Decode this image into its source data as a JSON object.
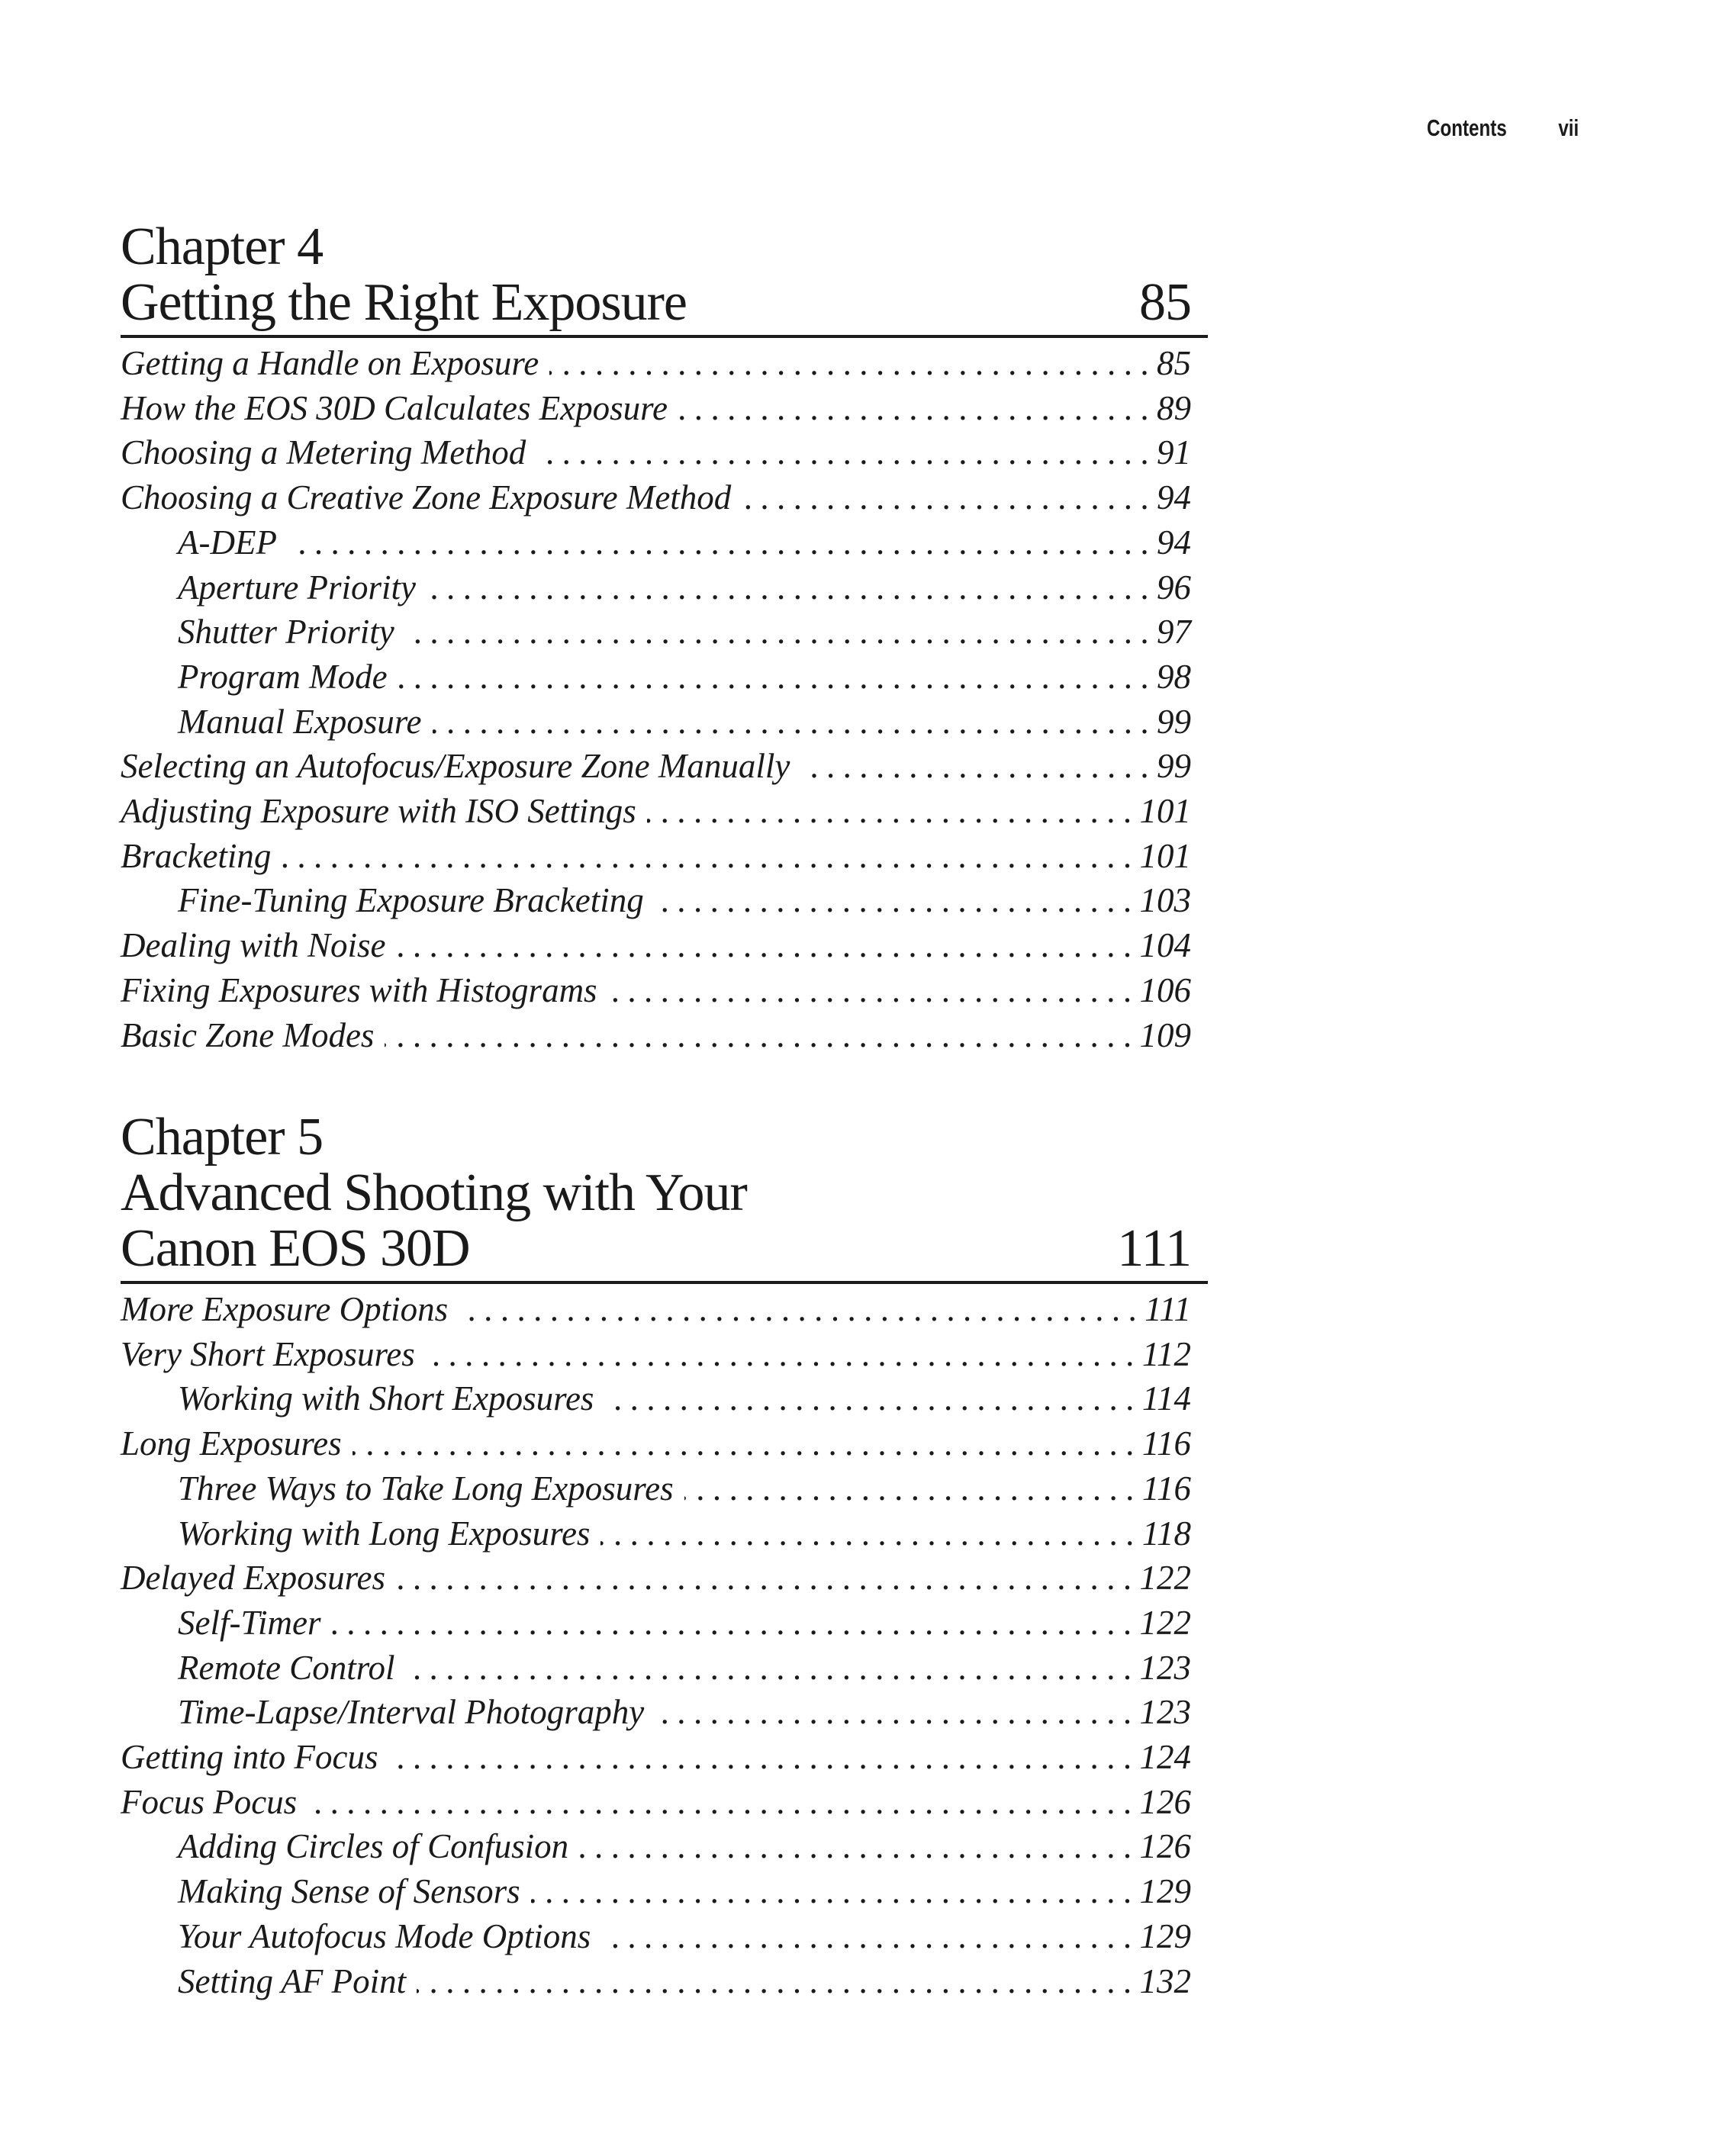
{
  "running_head": {
    "section": "Contents",
    "page": "vii"
  },
  "chapters": [
    {
      "label": "Chapter 4",
      "title_lines": [
        "Getting the Right Exposure"
      ],
      "page": "85",
      "entries": [
        {
          "title": "Getting a Handle on Exposure",
          "page": "85",
          "level": 1
        },
        {
          "title": "How the EOS 30D Calculates Exposure",
          "page": "89",
          "level": 1
        },
        {
          "title": "Choosing a Metering Method",
          "page": "91",
          "level": 1
        },
        {
          "title": "Choosing a Creative Zone Exposure Method",
          "page": "94",
          "level": 1
        },
        {
          "title": "A-DEP",
          "page": "94",
          "level": 2
        },
        {
          "title": "Aperture Priority",
          "page": "96",
          "level": 2
        },
        {
          "title": "Shutter Priority",
          "page": "97",
          "level": 2
        },
        {
          "title": "Program Mode",
          "page": "98",
          "level": 2
        },
        {
          "title": "Manual Exposure",
          "page": "99",
          "level": 2
        },
        {
          "title": "Selecting an Autofocus/Exposure Zone Manually",
          "page": "99",
          "level": 1
        },
        {
          "title": "Adjusting Exposure with ISO Settings",
          "page": "101",
          "level": 1
        },
        {
          "title": "Bracketing",
          "page": "101",
          "level": 1
        },
        {
          "title": "Fine-Tuning Exposure Bracketing",
          "page": "103",
          "level": 2
        },
        {
          "title": "Dealing with Noise",
          "page": "104",
          "level": 1
        },
        {
          "title": "Fixing Exposures with Histograms",
          "page": "106",
          "level": 1
        },
        {
          "title": "Basic Zone Modes",
          "page": "109",
          "level": 1
        }
      ]
    },
    {
      "label": "Chapter 5",
      "title_lines": [
        "Advanced Shooting with Your",
        "Canon EOS 30D"
      ],
      "page": "111",
      "entries": [
        {
          "title": "More Exposure Options",
          "page": "111",
          "level": 1
        },
        {
          "title": "Very Short Exposures",
          "page": "112",
          "level": 1
        },
        {
          "title": "Working with Short Exposures",
          "page": "114",
          "level": 2
        },
        {
          "title": "Long Exposures",
          "page": "116",
          "level": 1
        },
        {
          "title": "Three Ways to Take Long Exposures",
          "page": "116",
          "level": 2
        },
        {
          "title": "Working with Long Exposures",
          "page": "118",
          "level": 2
        },
        {
          "title": "Delayed Exposures",
          "page": "122",
          "level": 1
        },
        {
          "title": "Self-Timer",
          "page": "122",
          "level": 2
        },
        {
          "title": "Remote Control",
          "page": "123",
          "level": 2
        },
        {
          "title": "Time-Lapse/Interval Photography",
          "page": "123",
          "level": 2
        },
        {
          "title": "Getting into Focus",
          "page": "124",
          "level": 1
        },
        {
          "title": "Focus Pocus",
          "page": "126",
          "level": 1
        },
        {
          "title": "Adding Circles of Confusion",
          "page": "126",
          "level": 2
        },
        {
          "title": "Making Sense of Sensors",
          "page": "129",
          "level": 2
        },
        {
          "title": "Your Autofocus Mode Options",
          "page": "129",
          "level": 2
        },
        {
          "title": "Setting AF Point",
          "page": "132",
          "level": 2
        }
      ]
    }
  ]
}
